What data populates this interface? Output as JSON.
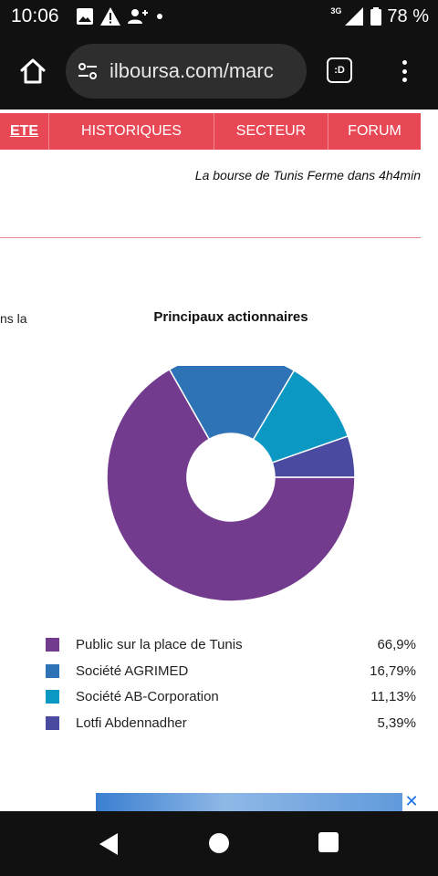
{
  "status_bar": {
    "time": "10:06",
    "network_label": "3G",
    "battery": "78 %",
    "icons": [
      "image-icon",
      "warning-icon",
      "person-add-icon",
      "dot-icon",
      "signal-icon",
      "battery-icon"
    ]
  },
  "browser": {
    "url": "ilboursa.com/marc",
    "tab_label": ":D"
  },
  "nav_tabs": [
    {
      "label": "ETE",
      "active": true
    },
    {
      "label": "HISTORIQUES",
      "active": false
    },
    {
      "label": "SECTEUR",
      "active": false
    },
    {
      "label": "FORUM",
      "active": false
    }
  ],
  "market_status": "La bourse de Tunis Ferme dans 4h4min",
  "side_text": "ns  la",
  "chart_data": {
    "type": "pie",
    "title": "Principaux actionnaires",
    "donut": true,
    "legend_position": "bottom",
    "categories": [
      "Public sur la place de Tunis",
      "Société AGRIMED",
      "Société AB-Corporation",
      "Lotfi Abdennadher"
    ],
    "values": [
      66.9,
      16.79,
      11.13,
      5.39
    ],
    "value_labels": [
      "66,9%",
      "16,79%",
      "11,13%",
      "5,39%"
    ],
    "colors": [
      "#733b8e",
      "#2f73b7",
      "#0b98c3",
      "#4a4ba0"
    ]
  },
  "ad": {
    "close_label": "✕"
  }
}
